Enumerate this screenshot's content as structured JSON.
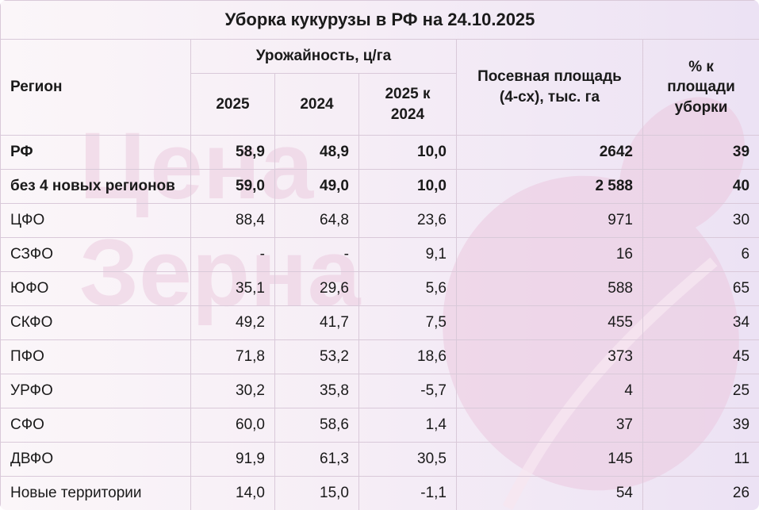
{
  "title": "Уборка кукурузы в РФ на 24.10.2025",
  "watermark": {
    "line1": "Цена",
    "line2": "Зерна"
  },
  "headers": {
    "region": "Регион",
    "yield_group": "Урожайность, ц/га",
    "y2025": "2025",
    "y2024": "2024",
    "diff": "2025 к 2024",
    "area": "Посевная площадь (4-сх), тыс. га",
    "pct": "% к площади уборки"
  },
  "rows": [
    {
      "region": "РФ",
      "y2025": "58,9",
      "y2024": "48,9",
      "diff": "10,0",
      "area": "2642",
      "pct": "39",
      "bold": true
    },
    {
      "region": "без 4 новых регионов",
      "y2025": "59,0",
      "y2024": "49,0",
      "diff": "10,0",
      "area": "2 588",
      "pct": "40",
      "bold": true
    },
    {
      "region": "ЦФО",
      "y2025": "88,4",
      "y2024": "64,8",
      "diff": "23,6",
      "area": "971",
      "pct": "30",
      "bold": false
    },
    {
      "region": "СЗФО",
      "y2025": "-",
      "y2024": "-",
      "diff": "9,1",
      "area": "16",
      "pct": "6",
      "bold": false
    },
    {
      "region": "ЮФО",
      "y2025": "35,1",
      "y2024": "29,6",
      "diff": "5,6",
      "area": "588",
      "pct": "65",
      "bold": false
    },
    {
      "region": "СКФО",
      "y2025": "49,2",
      "y2024": "41,7",
      "diff": "7,5",
      "area": "455",
      "pct": "34",
      "bold": false
    },
    {
      "region": "ПФО",
      "y2025": "71,8",
      "y2024": "53,2",
      "diff": "18,6",
      "area": "373",
      "pct": "45",
      "bold": false
    },
    {
      "region": "УРФО",
      "y2025": "30,2",
      "y2024": "35,8",
      "diff": "-5,7",
      "area": "4",
      "pct": "25",
      "bold": false
    },
    {
      "region": "СФО",
      "y2025": "60,0",
      "y2024": "58,6",
      "diff": "1,4",
      "area": "37",
      "pct": "39",
      "bold": false
    },
    {
      "region": "ДВФО",
      "y2025": "91,9",
      "y2024": "61,3",
      "diff": "30,5",
      "area": "145",
      "pct": "11",
      "bold": false
    },
    {
      "region": "Новые территории",
      "y2025": "14,0",
      "y2024": "15,0",
      "diff": "-1,1",
      "area": "54",
      "pct": "26",
      "bold": false
    }
  ],
  "colors": {
    "border": "#d9c9d9",
    "watermark": "#e8c6dd",
    "text": "#1a1a1a"
  }
}
